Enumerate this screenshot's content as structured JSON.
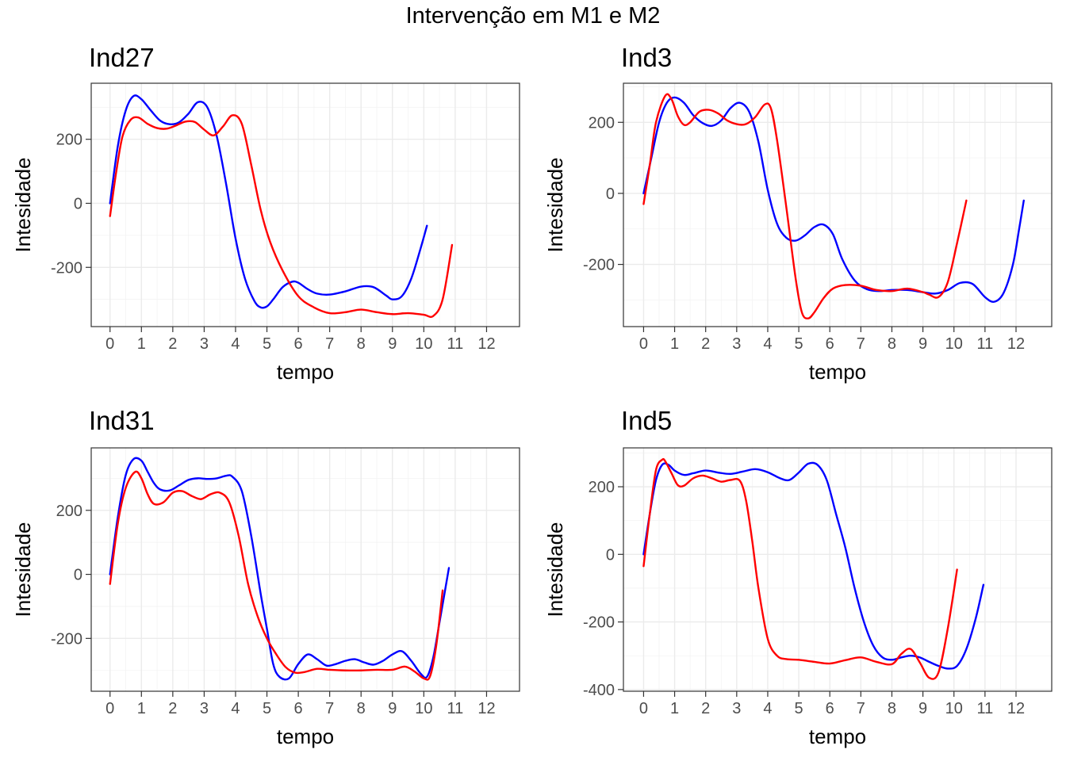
{
  "title": "Intervenção em M1 e M2",
  "colors": {
    "blue": "#0000ff",
    "red": "#ff0000"
  },
  "chart_data": [
    {
      "type": "line",
      "panel": "Ind27",
      "title": "Ind27",
      "xlabel": "tempo",
      "ylabel": "Intesidade",
      "xlim": [
        -0.6,
        13.05
      ],
      "ylim": [
        -385,
        375
      ],
      "xticks": [
        0,
        1,
        2,
        3,
        4,
        5,
        6,
        7,
        8,
        9,
        10,
        11,
        12
      ],
      "yticks": [
        -200,
        0,
        200
      ],
      "ytick_labels": [
        "-200",
        "0",
        "200"
      ],
      "series": [
        {
          "color": "#0000ff",
          "x": [
            0,
            0.25,
            0.5,
            0.75,
            1,
            1.3,
            1.6,
            1.9,
            2.2,
            2.5,
            2.8,
            3.1,
            3.4,
            3.7,
            4,
            4.3,
            4.6,
            4.8,
            5,
            5.2,
            5.5,
            5.8,
            6,
            6.3,
            6.6,
            7,
            7.5,
            8,
            8.4,
            8.8,
            9,
            9.3,
            9.6,
            9.9,
            10.1
          ],
          "y": [
            0,
            180,
            290,
            335,
            325,
            290,
            258,
            247,
            253,
            280,
            316,
            300,
            210,
            60,
            -110,
            -235,
            -305,
            -325,
            -322,
            -300,
            -262,
            -245,
            -248,
            -268,
            -282,
            -285,
            -275,
            -260,
            -262,
            -288,
            -300,
            -290,
            -235,
            -140,
            -70
          ]
        },
        {
          "color": "#ff0000",
          "x": [
            0,
            0.2,
            0.4,
            0.65,
            0.9,
            1.2,
            1.5,
            1.8,
            2.1,
            2.4,
            2.7,
            3,
            3.3,
            3.6,
            3.9,
            4.2,
            4.5,
            4.8,
            5.1,
            5.5,
            6,
            6.5,
            7,
            7.5,
            8,
            8.5,
            9,
            9.5,
            10,
            10.3,
            10.6,
            10.9
          ],
          "y": [
            -40,
            100,
            210,
            260,
            268,
            248,
            235,
            233,
            243,
            255,
            254,
            230,
            212,
            240,
            275,
            248,
            120,
            -20,
            -120,
            -210,
            -290,
            -325,
            -343,
            -340,
            -332,
            -340,
            -346,
            -343,
            -348,
            -352,
            -300,
            -130
          ]
        }
      ]
    },
    {
      "type": "line",
      "panel": "Ind3",
      "title": "Ind3",
      "xlabel": "tempo",
      "ylabel": "Intesidade",
      "xlim": [
        -0.65,
        13.15
      ],
      "ylim": [
        -375,
        310
      ],
      "xticks": [
        0,
        1,
        2,
        3,
        4,
        5,
        6,
        7,
        8,
        9,
        10,
        11,
        12
      ],
      "yticks": [
        -200,
        0,
        200
      ],
      "ytick_labels": [
        "-200",
        "0",
        "200"
      ],
      "series": [
        {
          "color": "#0000ff",
          "x": [
            0,
            0.25,
            0.5,
            0.75,
            1,
            1.3,
            1.6,
            1.9,
            2.2,
            2.5,
            2.8,
            3.1,
            3.4,
            3.7,
            4,
            4.3,
            4.6,
            4.9,
            5.2,
            5.5,
            5.8,
            6.1,
            6.4,
            6.8,
            7.2,
            7.6,
            8,
            8.5,
            9,
            9.4,
            9.8,
            10.2,
            10.6,
            11,
            11.3,
            11.6,
            11.9,
            12.1,
            12.25
          ],
          "y": [
            0,
            100,
            200,
            255,
            270,
            255,
            220,
            198,
            190,
            205,
            240,
            255,
            230,
            145,
            10,
            -85,
            -125,
            -133,
            -118,
            -95,
            -88,
            -115,
            -185,
            -245,
            -270,
            -275,
            -272,
            -272,
            -278,
            -282,
            -272,
            -252,
            -255,
            -292,
            -305,
            -280,
            -200,
            -100,
            -20
          ]
        },
        {
          "color": "#ff0000",
          "x": [
            0,
            0.2,
            0.4,
            0.7,
            0.9,
            1.1,
            1.3,
            1.5,
            1.8,
            2.1,
            2.4,
            2.7,
            3,
            3.3,
            3.6,
            3.9,
            4.1,
            4.3,
            4.6,
            4.9,
            5.1,
            5.3,
            5.5,
            5.8,
            6.1,
            6.5,
            7,
            7.5,
            8,
            8.5,
            9,
            9.2,
            9.5,
            9.8,
            10.1,
            10.4
          ],
          "y": [
            -30,
            80,
            200,
            275,
            265,
            218,
            193,
            200,
            230,
            235,
            225,
            205,
            195,
            195,
            215,
            250,
            240,
            150,
            -40,
            -240,
            -335,
            -352,
            -335,
            -295,
            -268,
            -258,
            -260,
            -272,
            -275,
            -268,
            -278,
            -285,
            -292,
            -250,
            -140,
            -20
          ]
        }
      ]
    },
    {
      "type": "line",
      "panel": "Ind31",
      "title": "Ind31",
      "xlabel": "tempo",
      "ylabel": "Intesidade",
      "xlim": [
        -0.6,
        13.05
      ],
      "ylim": [
        -365,
        395
      ],
      "xticks": [
        0,
        1,
        2,
        3,
        4,
        5,
        6,
        7,
        8,
        9,
        10,
        11,
        12
      ],
      "yticks": [
        -200,
        0,
        200
      ],
      "ytick_labels": [
        "-200",
        "0",
        "200"
      ],
      "series": [
        {
          "color": "#0000ff",
          "x": [
            0,
            0.25,
            0.5,
            0.75,
            1,
            1.2,
            1.4,
            1.6,
            1.9,
            2.2,
            2.5,
            2.8,
            3.1,
            3.4,
            3.7,
            3.9,
            4.2,
            4.5,
            4.8,
            5,
            5.2,
            5.4,
            5.7,
            6,
            6.3,
            6.6,
            6.9,
            7.2,
            7.5,
            7.8,
            8.1,
            8.4,
            8.7,
            9,
            9.3,
            9.6,
            9.9,
            10.1,
            10.3,
            10.5,
            10.8
          ],
          "y": [
            0,
            180,
            310,
            360,
            355,
            320,
            285,
            265,
            262,
            278,
            295,
            300,
            298,
            300,
            308,
            305,
            260,
            120,
            -60,
            -170,
            -280,
            -320,
            -325,
            -280,
            -250,
            -265,
            -285,
            -280,
            -270,
            -265,
            -275,
            -282,
            -270,
            -250,
            -240,
            -270,
            -310,
            -320,
            -260,
            -150,
            20
          ]
        },
        {
          "color": "#ff0000",
          "x": [
            0,
            0.25,
            0.5,
            0.8,
            1,
            1.2,
            1.4,
            1.7,
            2,
            2.3,
            2.6,
            2.9,
            3.2,
            3.5,
            3.8,
            4.1,
            4.4,
            4.7,
            5,
            5.3,
            5.6,
            5.9,
            6.2,
            6.6,
            7,
            7.5,
            8,
            8.5,
            9,
            9.4,
            9.7,
            10,
            10.2,
            10.4,
            10.6
          ],
          "y": [
            -30,
            160,
            270,
            320,
            300,
            250,
            220,
            225,
            255,
            260,
            245,
            235,
            250,
            255,
            225,
            120,
            -30,
            -130,
            -200,
            -250,
            -290,
            -307,
            -305,
            -295,
            -298,
            -300,
            -300,
            -298,
            -298,
            -288,
            -303,
            -325,
            -318,
            -220,
            -50
          ]
        }
      ]
    },
    {
      "type": "line",
      "panel": "Ind5",
      "title": "Ind5",
      "xlabel": "tempo",
      "ylabel": "Intesidade",
      "xlim": [
        -0.65,
        13.15
      ],
      "ylim": [
        -405,
        315
      ],
      "xticks": [
        0,
        1,
        2,
        3,
        4,
        5,
        6,
        7,
        8,
        9,
        10,
        11,
        12
      ],
      "yticks": [
        -400,
        -200,
        0,
        200
      ],
      "ytick_labels": [
        "-400",
        "-200",
        "0",
        "200"
      ],
      "series": [
        {
          "color": "#0000ff",
          "x": [
            0,
            0.2,
            0.4,
            0.6,
            0.8,
            1,
            1.3,
            1.6,
            2,
            2.4,
            2.8,
            3.2,
            3.6,
            4,
            4.4,
            4.7,
            5,
            5.3,
            5.6,
            5.9,
            6.2,
            6.5,
            6.8,
            7.1,
            7.4,
            7.7,
            8,
            8.3,
            8.6,
            8.9,
            9.2,
            9.5,
            9.8,
            10.1,
            10.4,
            10.7,
            10.95
          ],
          "y": [
            0,
            120,
            220,
            265,
            265,
            248,
            235,
            240,
            248,
            242,
            238,
            245,
            252,
            243,
            225,
            220,
            242,
            268,
            265,
            220,
            120,
            20,
            -100,
            -200,
            -270,
            -305,
            -312,
            -305,
            -300,
            -305,
            -318,
            -330,
            -338,
            -330,
            -280,
            -190,
            -90
          ]
        },
        {
          "color": "#ff0000",
          "x": [
            0,
            0.2,
            0.4,
            0.6,
            0.7,
            0.9,
            1.1,
            1.3,
            1.6,
            1.9,
            2.2,
            2.5,
            2.8,
            3.1,
            3.3,
            3.5,
            3.7,
            4,
            4.3,
            4.6,
            5,
            5.5,
            6,
            6.5,
            7,
            7.5,
            8,
            8.3,
            8.6,
            8.9,
            9.2,
            9.5,
            9.8,
            10.1
          ],
          "y": [
            -35,
            120,
            250,
            280,
            275,
            240,
            205,
            203,
            225,
            233,
            225,
            215,
            220,
            218,
            160,
            40,
            -100,
            -250,
            -300,
            -310,
            -312,
            -318,
            -323,
            -313,
            -305,
            -318,
            -325,
            -295,
            -280,
            -320,
            -365,
            -350,
            -220,
            -45
          ]
        }
      ]
    }
  ]
}
